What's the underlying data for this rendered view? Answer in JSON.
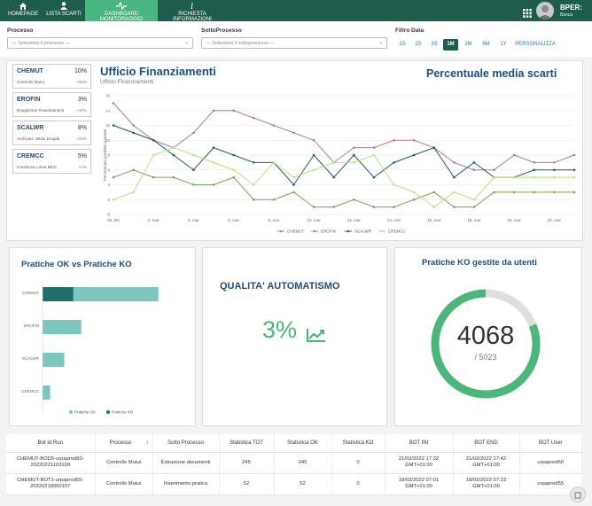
{
  "nav": {
    "items": [
      {
        "label": "HOMEPAGE",
        "icon": "home-icon"
      },
      {
        "label": "LISTA SCARTI",
        "icon": "user-icon"
      },
      {
        "label": "DASHBOARD MONITORAGGIO",
        "icon": "pulse-icon",
        "active": true
      },
      {
        "label": "RICHIESTA INFORMAZIONI",
        "icon": "info-icon"
      }
    ],
    "brand": "BPER:",
    "brand_sub": "Banca"
  },
  "filters": {
    "processo_label": "Processo",
    "processo_placeholder": "--- Seleziona il processo ---",
    "sottoprocesso_label": "SottoProcesso",
    "sottoprocesso_placeholder": "--- Seleziona il sottoprocesso ---",
    "data_label": "Filtro Data",
    "date_buttons": [
      "1S",
      "2S",
      "3S",
      "1M",
      "2M",
      "6M",
      "1Y",
      "PERSONALIZZA"
    ],
    "active_date": "1M"
  },
  "kpis": [
    {
      "name": "CHEMUT",
      "pct": "10%",
      "sub": "Controllo Mutui",
      "delta": "+50%"
    },
    {
      "name": "EROFIN",
      "pct": "3%",
      "sub": "Erogazione Finanziamenti",
      "delta": "+40%"
    },
    {
      "name": "SCALWR",
      "pct": "8%",
      "sub": "Archiviaz. Mutui Erogati",
      "delta": "+25%"
    },
    {
      "name": "CREMCC",
      "pct": "5%",
      "sub": "Creazione Linea MCC",
      "delta": "+0%"
    }
  ],
  "office": {
    "title": "Ufficio Finanziamenti",
    "subtitle": "Ufficio Finanziamenti",
    "chart_title": "Percentuale media scarti"
  },
  "colors": {
    "chemut": "#b07a9e",
    "erofin": "#7aa557",
    "scalwr": "#1e5d63",
    "cremcc": "#b9e27a",
    "ok": "#7cc7bd",
    "ko": "#1f6e6b",
    "gauge": "#4cb67a",
    "nav": "#1e5d4d"
  },
  "chart_data": [
    {
      "type": "line",
      "ylabel": "Percentuale pratiche scartate",
      "ylim": [
        0,
        16
      ],
      "x_ticks": [
        "28. feb",
        "2. mar",
        "4. mar",
        "6. mar",
        "8. mar",
        "10. mar",
        "12. mar",
        "14. mar",
        "16. mar",
        "18. mar",
        "20. mar",
        "22. mar"
      ],
      "x": [
        0,
        1,
        2,
        3,
        4,
        5,
        6,
        7,
        8,
        9,
        10,
        11,
        12,
        13,
        14,
        15,
        16,
        17,
        18,
        19,
        20,
        21,
        22,
        23
      ],
      "series": [
        {
          "name": "CHEMUT",
          "values": [
            15,
            12,
            10,
            9,
            11,
            14,
            14,
            13,
            12,
            11,
            10,
            7,
            9,
            9,
            10,
            10,
            9,
            7,
            6,
            6,
            8,
            7,
            7,
            8
          ]
        },
        {
          "name": "EROFIN",
          "values": [
            5,
            6,
            5,
            5,
            4,
            4,
            5,
            2,
            2,
            3,
            1,
            1,
            2,
            1,
            1,
            2,
            3,
            1,
            1,
            3,
            3,
            3,
            3,
            3
          ]
        },
        {
          "name": "SCALWR",
          "values": [
            12,
            11,
            10,
            8,
            6,
            9,
            8,
            7,
            7,
            4,
            8,
            5,
            8,
            5,
            7,
            8,
            9,
            5,
            7,
            5,
            5,
            6,
            6,
            6
          ]
        },
        {
          "name": "CREMCC",
          "values": [
            2,
            3,
            8,
            9,
            8,
            7,
            6,
            4,
            7,
            5,
            6,
            7,
            7,
            8,
            4,
            3,
            1,
            3,
            2,
            5,
            5,
            5,
            5,
            5
          ]
        }
      ]
    },
    {
      "type": "bar",
      "title": "Pratiche OK vs Pratiche KO",
      "categories": [
        "CHEMUT",
        "EROFIN",
        "SCALWR",
        "CREMCC"
      ],
      "series": [
        {
          "name": "Pratiche OK",
          "values": [
            245,
            82,
            46,
            16
          ]
        },
        {
          "name": "Pratiche KO",
          "values": [
            25,
            0,
            0,
            0
          ]
        }
      ],
      "xlim": [
        0,
        300
      ]
    }
  ],
  "qualita": {
    "title": "QUALITA' AUTOMATISMO",
    "value": "3%"
  },
  "gauge": {
    "title": "Pratiche KO gestite da utenti",
    "value": "4068",
    "total": "/ 5023",
    "fraction": 0.81
  },
  "table": {
    "headers": [
      "Bot Id Run",
      "Processo",
      "Sotto Processo",
      "Statistica TOT",
      "Statistica OK",
      "Statistica KO",
      "BOT INI",
      "BOT END",
      "BOT User"
    ],
    "rows": [
      [
        "CHEMUT-BOD5-urpaprod60-20220221163109",
        "Controllo Mutui",
        "Estrazione documenti",
        "245",
        "245",
        "0",
        "21/02/2022 17:32 GMT+01:00",
        "21/02/2022 17:42 GMT+01:00",
        "urpaprod60"
      ],
      [
        "CHEMUT-BOT1-urpaprod55-20220218060107",
        "Controllo Mutui",
        "Inserimento pratica",
        "52",
        "52",
        "0",
        "18/02/2022 07:01 GMT+01:00",
        "18/02/2022 07:23 GMT+01:00",
        "urpaprod55"
      ]
    ]
  }
}
